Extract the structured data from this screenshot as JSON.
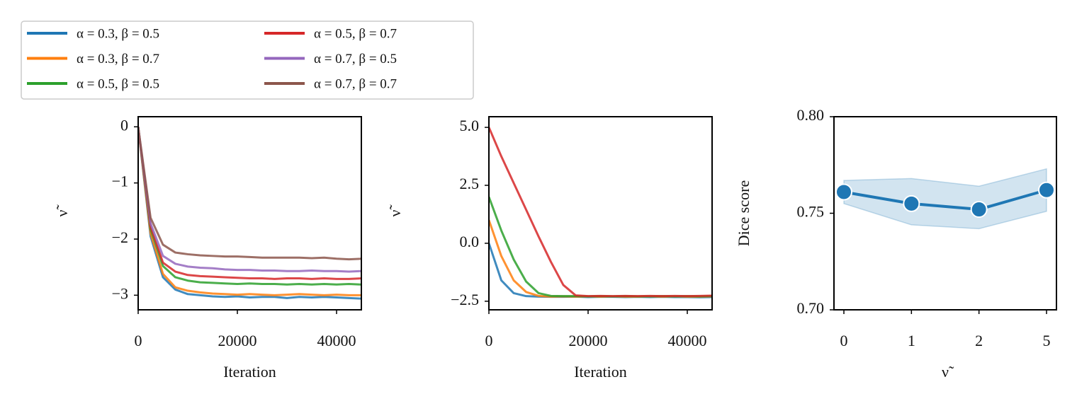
{
  "chart_data": [
    {
      "type": "line",
      "x_label": "Iteration",
      "y_label": "ν̃",
      "x": [
        0,
        2500,
        5000,
        7500,
        10000,
        12500,
        15000,
        17500,
        20000,
        22500,
        25000,
        27500,
        30000,
        32500,
        35000,
        37500,
        40000,
        42500,
        45000
      ],
      "xlim": [
        0,
        45000
      ],
      "xticks": [
        0,
        20000,
        40000
      ],
      "ylim": [
        -3.26,
        0.18
      ],
      "yticks": [
        {
          "value": -3,
          "label": "−3"
        },
        {
          "value": -2,
          "label": "−2"
        },
        {
          "value": -1,
          "label": "−1"
        },
        0
      ],
      "legend": "upper left",
      "series": [
        {
          "name": "α = 0.3, β = 0.5",
          "color": "#1f77b4",
          "values": [
            0,
            -1.95,
            -2.68,
            -2.9,
            -2.98,
            -3.0,
            -3.02,
            -3.03,
            -3.02,
            -3.04,
            -3.03,
            -3.03,
            -3.05,
            -3.03,
            -3.04,
            -3.03,
            -3.04,
            -3.05,
            -3.06
          ]
        },
        {
          "name": "α = 0.3, β = 0.7",
          "color": "#ff7f0e",
          "values": [
            0,
            -1.9,
            -2.62,
            -2.86,
            -2.92,
            -2.95,
            -2.97,
            -2.98,
            -2.99,
            -2.98,
            -2.99,
            -3.0,
            -2.99,
            -2.98,
            -2.99,
            -3.0,
            -2.99,
            -3.0,
            -3.0
          ]
        },
        {
          "name": "α = 0.5, β = 0.5",
          "color": "#2ca02c",
          "values": [
            0,
            -1.82,
            -2.48,
            -2.68,
            -2.74,
            -2.77,
            -2.78,
            -2.79,
            -2.8,
            -2.79,
            -2.8,
            -2.8,
            -2.81,
            -2.8,
            -2.81,
            -2.8,
            -2.81,
            -2.8,
            -2.81
          ]
        },
        {
          "name": "α = 0.5, β = 0.7",
          "color": "#d62728",
          "values": [
            0,
            -1.78,
            -2.42,
            -2.58,
            -2.64,
            -2.66,
            -2.67,
            -2.68,
            -2.69,
            -2.7,
            -2.7,
            -2.71,
            -2.7,
            -2.7,
            -2.71,
            -2.7,
            -2.71,
            -2.71,
            -2.7
          ]
        },
        {
          "name": "α = 0.7, β = 0.5",
          "color": "#9467bd",
          "values": [
            0,
            -1.72,
            -2.3,
            -2.44,
            -2.49,
            -2.51,
            -2.52,
            -2.54,
            -2.55,
            -2.55,
            -2.56,
            -2.56,
            -2.57,
            -2.57,
            -2.56,
            -2.57,
            -2.57,
            -2.58,
            -2.57
          ]
        },
        {
          "name": "α = 0.7, β = 0.7",
          "color": "#8c564b",
          "values": [
            0,
            -1.62,
            -2.1,
            -2.24,
            -2.27,
            -2.29,
            -2.3,
            -2.31,
            -2.31,
            -2.32,
            -2.33,
            -2.33,
            -2.33,
            -2.33,
            -2.34,
            -2.33,
            -2.35,
            -2.36,
            -2.35
          ]
        }
      ]
    },
    {
      "type": "line",
      "x_label": "Iteration",
      "y_label": "ν̃",
      "x": [
        0,
        2500,
        5000,
        7500,
        10000,
        12500,
        15000,
        17500,
        20000,
        22500,
        25000,
        27500,
        30000,
        32500,
        35000,
        37500,
        40000,
        42500,
        45000
      ],
      "xlim": [
        0,
        45000
      ],
      "xticks": [
        0,
        20000,
        40000
      ],
      "ylim": [
        -2.87,
        5.46
      ],
      "yticks": [
        {
          "value": -2.5,
          "label": "−2.5"
        },
        {
          "value": 0,
          "label": "0.0"
        },
        {
          "value": 2.5,
          "label": "2.5"
        },
        {
          "value": 5,
          "label": "5.0"
        }
      ],
      "series": [
        {
          "color": "#1f77b4",
          "values": [
            0,
            -1.6,
            -2.15,
            -2.28,
            -2.3,
            -2.31,
            -2.31,
            -2.3,
            -2.32,
            -2.31,
            -2.31,
            -2.32,
            -2.31,
            -2.32,
            -2.31,
            -2.32,
            -2.32,
            -2.33,
            -2.32
          ]
        },
        {
          "color": "#ff7f0e",
          "values": [
            1,
            -0.55,
            -1.6,
            -2.1,
            -2.27,
            -2.3,
            -2.29,
            -2.3,
            -2.29,
            -2.3,
            -2.29,
            -2.3,
            -2.3,
            -2.29,
            -2.3,
            -2.29,
            -2.3,
            -2.3,
            -2.29
          ]
        },
        {
          "color": "#2ca02c",
          "values": [
            2,
            0.55,
            -0.7,
            -1.65,
            -2.15,
            -2.27,
            -2.28,
            -2.28,
            -2.29,
            -2.28,
            -2.29,
            -2.28,
            -2.29,
            -2.29,
            -2.28,
            -2.29,
            -2.28,
            -2.29,
            -2.28
          ]
        },
        {
          "color": "#d62728",
          "values": [
            5,
            3.75,
            2.6,
            1.45,
            0.3,
            -0.8,
            -1.8,
            -2.25,
            -2.28,
            -2.27,
            -2.28,
            -2.27,
            -2.28,
            -2.27,
            -2.28,
            -2.27,
            -2.28,
            -2.27,
            -2.26
          ]
        }
      ]
    },
    {
      "type": "line",
      "x_label": "ν̃",
      "y_label": "Dice score",
      "categories": [
        "0",
        "1",
        "2",
        "5"
      ],
      "ylim": [
        0.7,
        0.8
      ],
      "yticks": [
        {
          "value": 0.7,
          "label": "0.70"
        },
        {
          "value": 0.75,
          "label": "0.75"
        },
        {
          "value": 0.8,
          "label": "0.80"
        }
      ],
      "series": [
        {
          "color": "#1f77b4",
          "values": [
            0.761,
            0.755,
            0.752,
            0.762
          ],
          "lower": [
            0.755,
            0.744,
            0.742,
            0.751
          ],
          "upper": [
            0.767,
            0.768,
            0.764,
            0.773
          ]
        }
      ]
    }
  ]
}
